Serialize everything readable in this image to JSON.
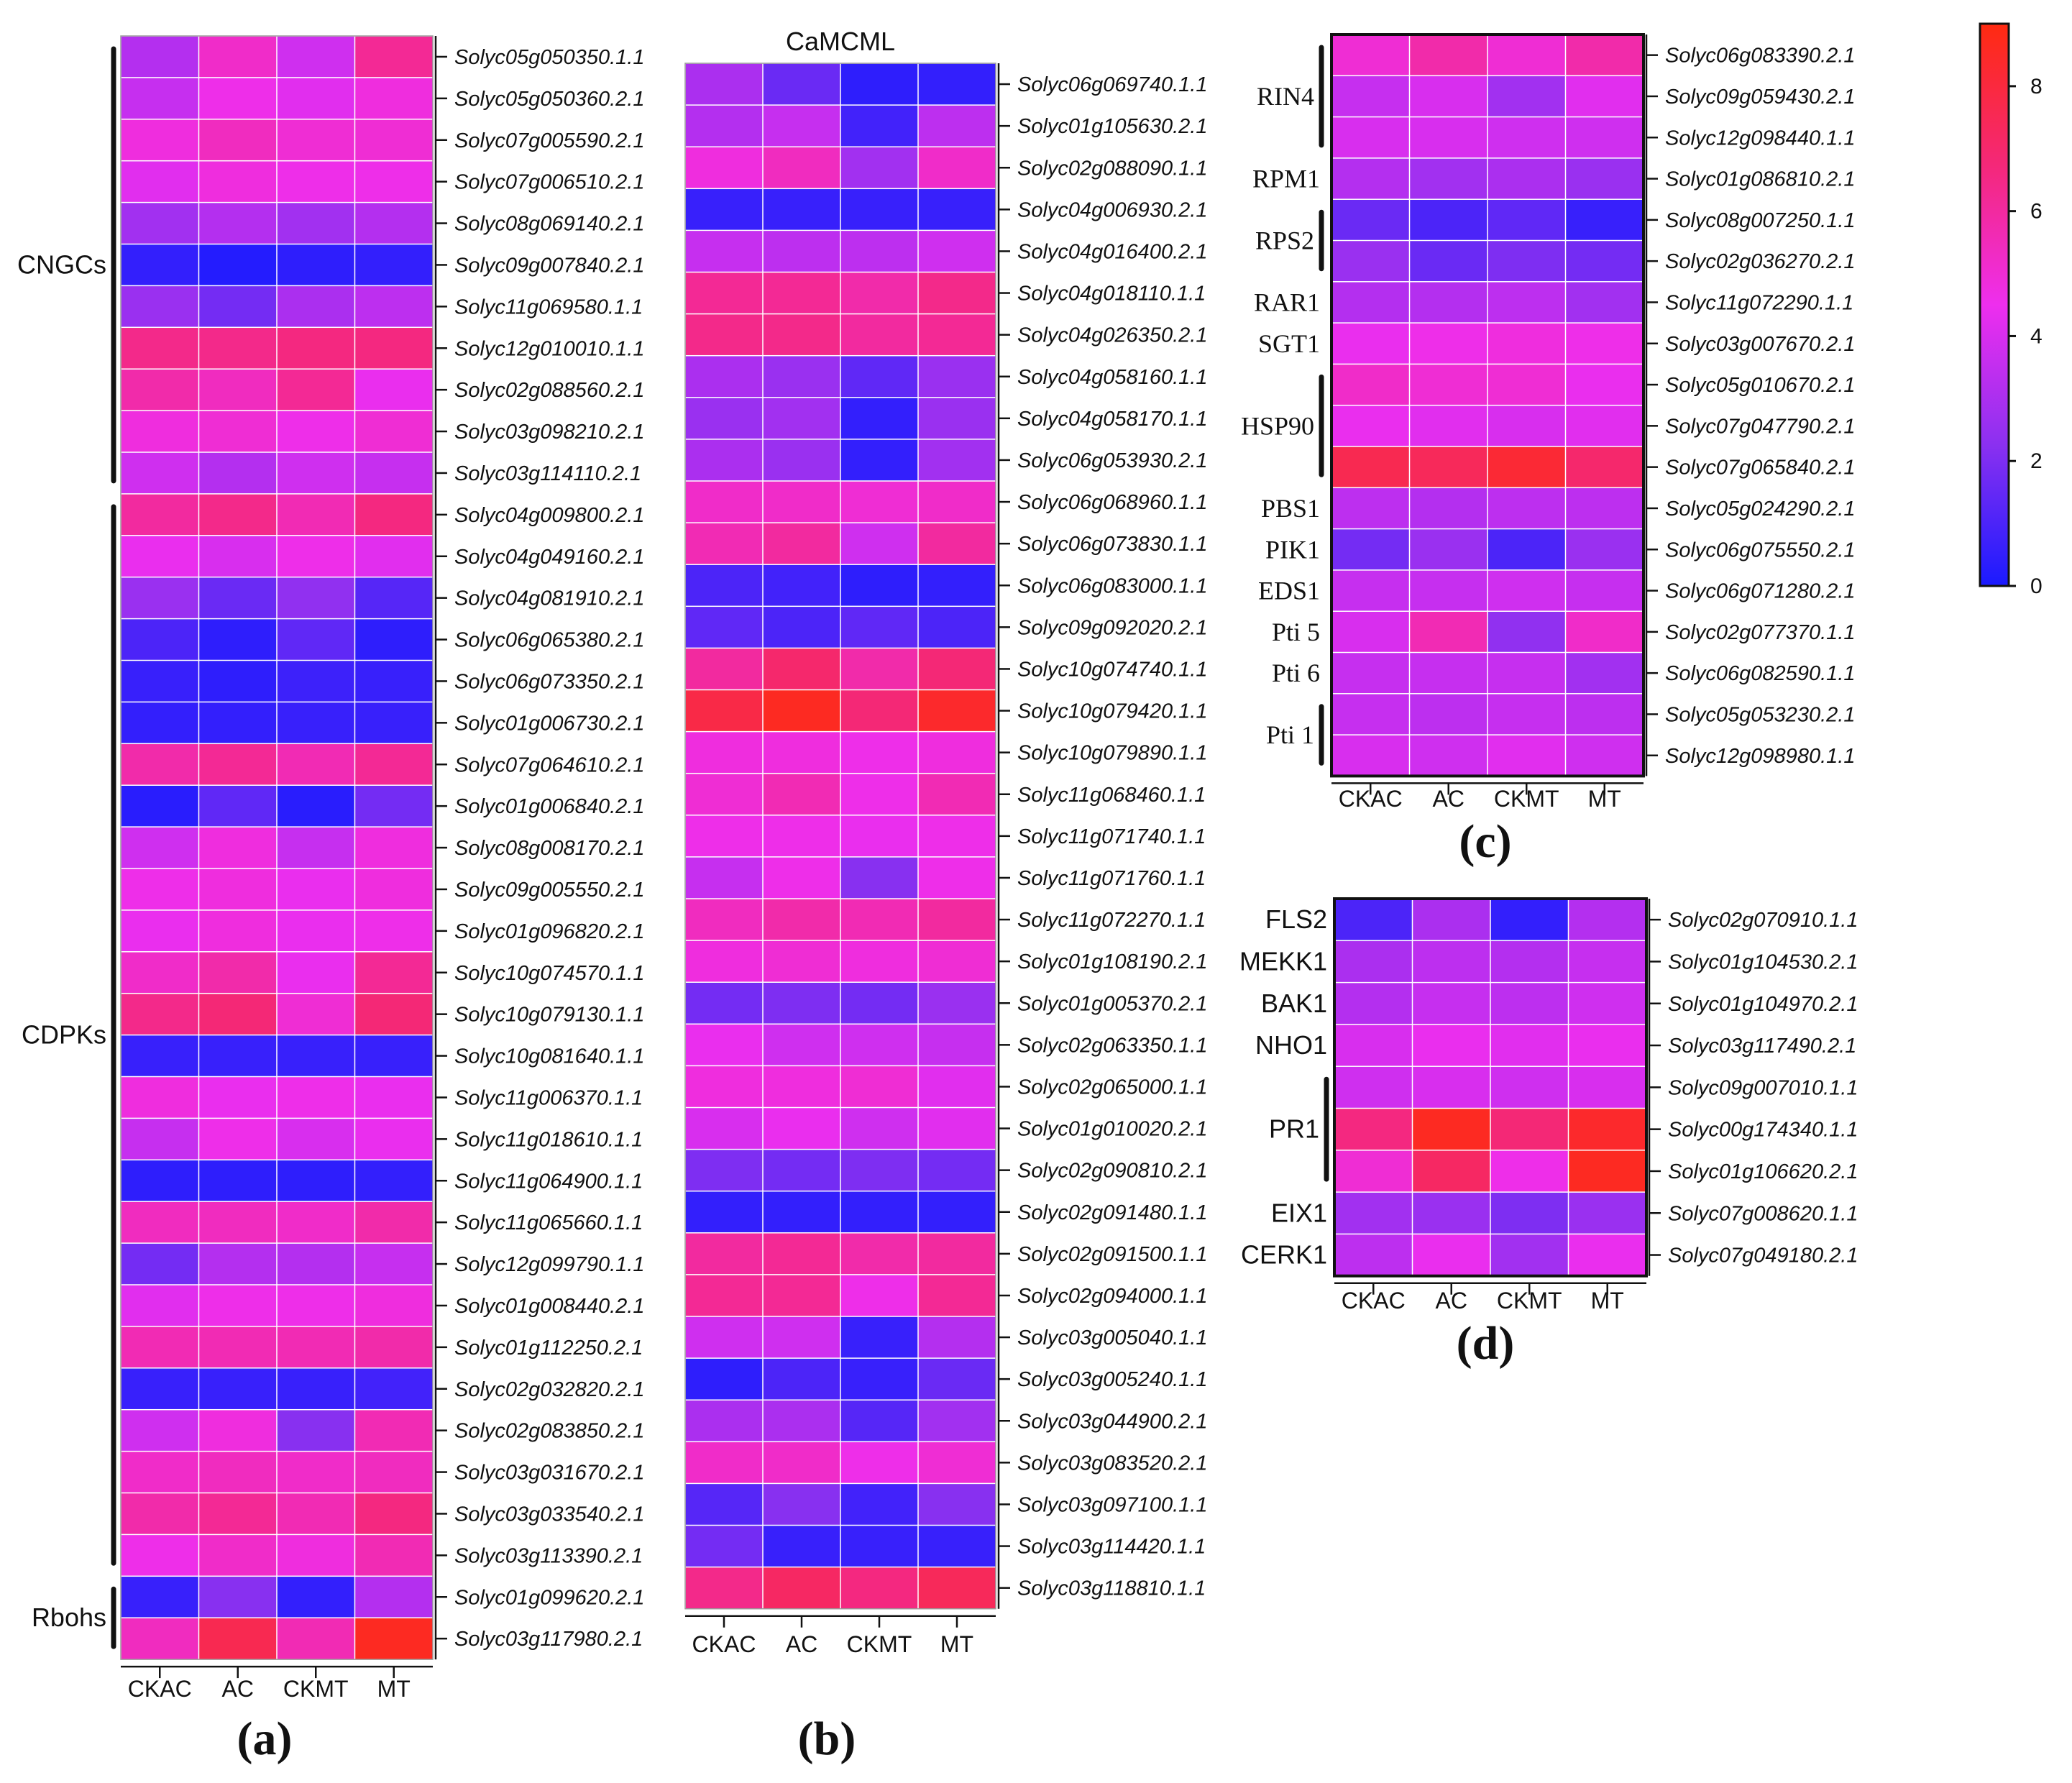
{
  "columns": [
    "CKAC",
    "AC",
    "CKMT",
    "MT"
  ],
  "colorbar": {
    "min": 0,
    "max": 9,
    "ticks": [
      "0",
      "2",
      "4",
      "6",
      "8"
    ],
    "stops": [
      "#1a1aff",
      "#8a30f0",
      "#ee2eee",
      "#f42878",
      "#ff2a10"
    ]
  },
  "chart_data": [
    {
      "panel": "(a)",
      "type": "heatmap",
      "title": "",
      "columns": [
        "CKAC",
        "AC",
        "CKMT",
        "MT"
      ],
      "groups": [
        {
          "label": "CNGCs",
          "from": 0,
          "to": 10
        },
        {
          "label": "CDPKs",
          "from": 11,
          "to": 36
        },
        {
          "label": "Rbohs",
          "from": 37,
          "to": 38
        }
      ],
      "rows": [
        "Solyc05g050350.1.1",
        "Solyc05g050360.2.1",
        "Solyc07g005590.2.1",
        "Solyc07g006510.2.1",
        "Solyc08g069140.2.1",
        "Solyc09g007840.2.1",
        "Solyc11g069580.1.1",
        "Solyc12g010010.1.1",
        "Solyc02g088560.2.1",
        "Solyc03g098210.2.1",
        "Solyc03g114110.2.1",
        "Solyc04g009800.2.1",
        "Solyc04g049160.2.1",
        "Solyc04g081910.2.1",
        "Solyc06g065380.2.1",
        "Solyc06g073350.2.1",
        "Solyc01g006730.2.1",
        "Solyc07g064610.2.1",
        "Solyc01g006840.2.1",
        "Solyc08g008170.2.1",
        "Solyc09g005550.2.1",
        "Solyc01g096820.2.1",
        "Solyc10g074570.1.1",
        "Solyc10g079130.1.1",
        "Solyc10g081640.1.1",
        "Solyc11g006370.1.1",
        "Solyc11g018610.1.1",
        "Solyc11g064900.1.1",
        "Solyc11g065660.1.1",
        "Solyc12g099790.1.1",
        "Solyc01g008440.2.1",
        "Solyc01g112250.2.1",
        "Solyc02g032820.2.1",
        "Solyc02g083850.2.1",
        "Solyc03g031670.2.1",
        "Solyc03g033540.2.1",
        "Solyc03g113390.2.1",
        "Solyc01g099620.2.1",
        "Solyc03g117980.2.1"
      ],
      "values": [
        [
          3.2,
          5.2,
          3.8,
          6.2
        ],
        [
          3.6,
          4.6,
          4.2,
          4.8
        ],
        [
          4.8,
          5.4,
          5.0,
          5.0
        ],
        [
          4.2,
          4.8,
          4.6,
          4.6
        ],
        [
          2.8,
          3.2,
          2.8,
          3.2
        ],
        [
          0.5,
          0.2,
          0.4,
          0.5
        ],
        [
          2.6,
          1.8,
          3.0,
          3.4
        ],
        [
          6.4,
          6.4,
          6.6,
          6.6
        ],
        [
          5.8,
          5.4,
          6.2,
          4.4
        ],
        [
          4.8,
          5.0,
          4.6,
          5.0
        ],
        [
          3.8,
          3.2,
          3.8,
          3.6
        ],
        [
          6.0,
          6.4,
          5.6,
          6.6
        ],
        [
          4.4,
          4.0,
          4.6,
          4.2
        ],
        [
          2.6,
          1.6,
          2.4,
          1.2
        ],
        [
          1.0,
          0.4,
          1.4,
          0.4
        ],
        [
          0.6,
          0.4,
          0.7,
          0.6
        ],
        [
          0.5,
          0.5,
          0.6,
          0.6
        ],
        [
          5.8,
          6.2,
          5.6,
          6.2
        ],
        [
          0.3,
          1.4,
          0.3,
          1.8
        ],
        [
          3.8,
          4.8,
          3.6,
          4.8
        ],
        [
          4.6,
          4.8,
          4.4,
          4.8
        ],
        [
          4.4,
          4.8,
          4.4,
          4.6
        ],
        [
          5.2,
          5.8,
          4.4,
          6.2
        ],
        [
          6.4,
          6.8,
          5.0,
          6.8
        ],
        [
          0.6,
          0.6,
          0.6,
          0.6
        ],
        [
          4.8,
          4.4,
          4.6,
          4.4
        ],
        [
          3.6,
          4.6,
          4.0,
          4.4
        ],
        [
          0.4,
          0.4,
          0.4,
          0.5
        ],
        [
          5.4,
          5.4,
          5.2,
          5.8
        ],
        [
          1.8,
          3.2,
          3.2,
          3.6
        ],
        [
          4.2,
          4.6,
          4.6,
          4.8
        ],
        [
          5.6,
          5.6,
          5.6,
          5.8
        ],
        [
          0.6,
          0.6,
          0.6,
          0.8
        ],
        [
          3.8,
          4.8,
          2.2,
          5.6
        ],
        [
          5.2,
          5.4,
          5.2,
          5.4
        ],
        [
          5.8,
          6.2,
          5.6,
          6.6
        ],
        [
          4.6,
          5.2,
          4.8,
          5.6
        ],
        [
          0.6,
          2.2,
          0.5,
          3.2
        ],
        [
          5.4,
          7.6,
          5.6,
          8.6
        ]
      ]
    },
    {
      "panel": "(b)",
      "type": "heatmap",
      "title": "CaMCML",
      "columns": [
        "CKAC",
        "AC",
        "CKMT",
        "MT"
      ],
      "rows": [
        "Solyc06g069740.1.1",
        "Solyc01g105630.2.1",
        "Solyc02g088090.1.1",
        "Solyc04g006930.2.1",
        "Solyc04g016400.2.1",
        "Solyc04g018110.1.1",
        "Solyc04g026350.2.1",
        "Solyc04g058160.1.1",
        "Solyc04g058170.1.1",
        "Solyc06g053930.2.1",
        "Solyc06g068960.1.1",
        "Solyc06g073830.1.1",
        "Solyc06g083000.1.1",
        "Solyc09g092020.2.1",
        "Solyc10g074740.1.1",
        "Solyc10g079420.1.1",
        "Solyc10g079890.1.1",
        "Solyc11g068460.1.1",
        "Solyc11g071740.1.1",
        "Solyc11g071760.1.1",
        "Solyc11g072270.1.1",
        "Solyc01g108190.2.1",
        "Solyc01g005370.2.1",
        "Solyc02g063350.1.1",
        "Solyc02g065000.1.1",
        "Solyc01g010020.2.1",
        "Solyc02g090810.2.1",
        "Solyc02g091480.1.1",
        "Solyc02g091500.1.1",
        "Solyc02g094000.1.1",
        "Solyc03g005040.1.1",
        "Solyc03g005240.1.1",
        "Solyc03g044900.2.1",
        "Solyc03g083520.2.1",
        "Solyc03g097100.1.1",
        "Solyc03g114420.1.1",
        "Solyc03g118810.1.1"
      ],
      "values": [
        [
          3.0,
          1.6,
          0.4,
          0.5
        ],
        [
          3.2,
          3.6,
          0.8,
          3.4
        ],
        [
          4.8,
          5.4,
          2.8,
          5.2
        ],
        [
          0.6,
          0.6,
          0.6,
          0.6
        ],
        [
          3.6,
          3.4,
          3.4,
          3.8
        ],
        [
          6.2,
          6.2,
          5.8,
          6.4
        ],
        [
          6.4,
          6.4,
          6.0,
          6.2
        ],
        [
          3.0,
          2.6,
          1.4,
          2.6
        ],
        [
          2.6,
          2.8,
          0.5,
          2.6
        ],
        [
          3.0,
          2.6,
          0.5,
          2.8
        ],
        [
          5.2,
          5.2,
          5.0,
          5.2
        ],
        [
          5.6,
          6.0,
          3.8,
          6.0
        ],
        [
          1.0,
          0.8,
          0.4,
          0.5
        ],
        [
          1.4,
          1.0,
          1.4,
          1.0
        ],
        [
          6.0,
          7.0,
          5.8,
          6.8
        ],
        [
          7.8,
          8.6,
          6.8,
          8.4
        ],
        [
          4.8,
          4.8,
          4.6,
          4.8
        ],
        [
          5.0,
          5.6,
          4.6,
          5.6
        ],
        [
          4.6,
          4.6,
          4.4,
          4.6
        ],
        [
          3.6,
          4.6,
          2.2,
          4.6
        ],
        [
          5.4,
          5.8,
          5.6,
          6.0
        ],
        [
          4.8,
          5.0,
          4.8,
          5.0
        ],
        [
          1.8,
          2.0,
          1.8,
          2.6
        ],
        [
          4.4,
          3.8,
          3.8,
          3.6
        ],
        [
          4.8,
          4.8,
          5.0,
          4.2
        ],
        [
          4.0,
          4.4,
          3.8,
          4.2
        ],
        [
          2.0,
          1.8,
          2.0,
          1.8
        ],
        [
          0.5,
          0.5,
          0.5,
          0.5
        ],
        [
          6.0,
          6.2,
          5.8,
          6.0
        ],
        [
          6.2,
          6.2,
          4.6,
          6.2
        ],
        [
          3.8,
          3.8,
          0.6,
          3.2
        ],
        [
          0.4,
          1.0,
          0.6,
          1.6
        ],
        [
          3.0,
          3.0,
          1.2,
          2.8
        ],
        [
          5.2,
          5.2,
          4.6,
          5.0
        ],
        [
          1.2,
          2.2,
          0.8,
          2.2
        ],
        [
          1.8,
          0.6,
          0.6,
          0.6
        ],
        [
          6.4,
          7.2,
          6.6,
          7.4
        ]
      ]
    },
    {
      "panel": "(c)",
      "type": "heatmap",
      "title": "",
      "columns": [
        "CKAC",
        "AC",
        "CKMT",
        "MT"
      ],
      "groups": [
        {
          "label": "RIN4",
          "from": 0,
          "to": 2,
          "bracket": true
        },
        {
          "label": "RPM1",
          "from": 3,
          "to": 3,
          "bracket": false
        },
        {
          "label": "RPS2",
          "from": 4,
          "to": 5,
          "bracket": true
        },
        {
          "label": "RAR1",
          "from": 6,
          "to": 6,
          "bracket": false
        },
        {
          "label": "SGT1",
          "from": 7,
          "to": 7,
          "bracket": false
        },
        {
          "label": "HSP90",
          "from": 8,
          "to": 10,
          "bracket": true
        },
        {
          "label": "PBS1",
          "from": 11,
          "to": 11,
          "bracket": false
        },
        {
          "label": "PIK1",
          "from": 12,
          "to": 12,
          "bracket": false
        },
        {
          "label": "EDS1",
          "from": 13,
          "to": 13,
          "bracket": false
        },
        {
          "label": "Pti 5",
          "from": 14,
          "to": 14,
          "bracket": false
        },
        {
          "label": "Pti 6",
          "from": 15,
          "to": 15,
          "bracket": false
        },
        {
          "label": "Pti 1",
          "from": 16,
          "to": 17,
          "bracket": true
        }
      ],
      "rows": [
        "Solyc06g083390.2.1",
        "Solyc09g059430.2.1",
        "Solyc12g098440.1.1",
        "Solyc01g086810.2.1",
        "Solyc08g007250.1.1",
        "Solyc02g036270.2.1",
        "Solyc11g072290.1.1",
        "Solyc03g007670.2.1",
        "Solyc05g010670.2.1",
        "Solyc07g047790.2.1",
        "Solyc07g065840.2.1",
        "Solyc05g024290.2.1",
        "Solyc06g075550.2.1",
        "Solyc06g071280.2.1",
        "Solyc02g077370.1.1",
        "Solyc06g082590.1.1",
        "Solyc05g053230.2.1",
        "Solyc12g098980.1.1"
      ],
      "values": [
        [
          5.0,
          5.8,
          5.0,
          5.8
        ],
        [
          3.6,
          4.0,
          2.8,
          4.2
        ],
        [
          4.0,
          4.0,
          3.8,
          3.8
        ],
        [
          3.2,
          2.8,
          3.0,
          2.6
        ],
        [
          1.6,
          1.0,
          1.4,
          0.6
        ],
        [
          2.6,
          1.6,
          2.0,
          1.8
        ],
        [
          3.2,
          3.2,
          3.4,
          2.8
        ],
        [
          4.4,
          4.6,
          4.8,
          4.6
        ],
        [
          5.2,
          5.0,
          5.0,
          4.4
        ],
        [
          4.4,
          4.2,
          4.0,
          4.2
        ],
        [
          7.6,
          7.4,
          8.2,
          7.0
        ],
        [
          3.4,
          3.2,
          3.4,
          3.4
        ],
        [
          1.8,
          2.6,
          1.0,
          2.6
        ],
        [
          3.6,
          3.6,
          3.8,
          3.6
        ],
        [
          4.0,
          5.6,
          2.4,
          5.2
        ],
        [
          3.6,
          3.6,
          3.6,
          2.8
        ],
        [
          3.6,
          3.4,
          3.6,
          3.4
        ],
        [
          4.0,
          3.8,
          4.2,
          3.8
        ]
      ]
    },
    {
      "panel": "(d)",
      "type": "heatmap",
      "title": "",
      "columns": [
        "CKAC",
        "AC",
        "CKMT",
        "MT"
      ],
      "groups": [
        {
          "label": "FLS2",
          "from": 0,
          "to": 0,
          "bracket": false
        },
        {
          "label": "MEKK1",
          "from": 1,
          "to": 1,
          "bracket": false
        },
        {
          "label": "BAK1",
          "from": 2,
          "to": 2,
          "bracket": false
        },
        {
          "label": "NHO1",
          "from": 3,
          "to": 3,
          "bracket": false
        },
        {
          "label": "PR1",
          "from": 4,
          "to": 6,
          "bracket": true
        },
        {
          "label": "EIX1",
          "from": 7,
          "to": 7,
          "bracket": false
        },
        {
          "label": "CERK1",
          "from": 8,
          "to": 8,
          "bracket": false
        }
      ],
      "rows": [
        "Solyc02g070910.1.1",
        "Solyc01g104530.2.1",
        "Solyc01g104970.2.1",
        "Solyc03g117490.2.1",
        "Solyc09g007010.1.1",
        "Solyc00g174340.1.1",
        "Solyc01g106620.2.1",
        "Solyc07g008620.1.1",
        "Solyc07g049180.2.1"
      ],
      "values": [
        [
          1.0,
          3.0,
          0.5,
          3.2
        ],
        [
          3.0,
          3.4,
          3.2,
          3.6
        ],
        [
          3.2,
          3.6,
          3.4,
          3.8
        ],
        [
          4.0,
          4.4,
          4.2,
          4.4
        ],
        [
          3.8,
          4.0,
          3.8,
          4.0
        ],
        [
          6.6,
          8.6,
          6.8,
          8.4
        ],
        [
          5.0,
          7.2,
          4.6,
          8.6
        ],
        [
          2.8,
          2.6,
          2.0,
          2.6
        ],
        [
          3.4,
          4.4,
          2.8,
          4.4
        ]
      ]
    }
  ]
}
